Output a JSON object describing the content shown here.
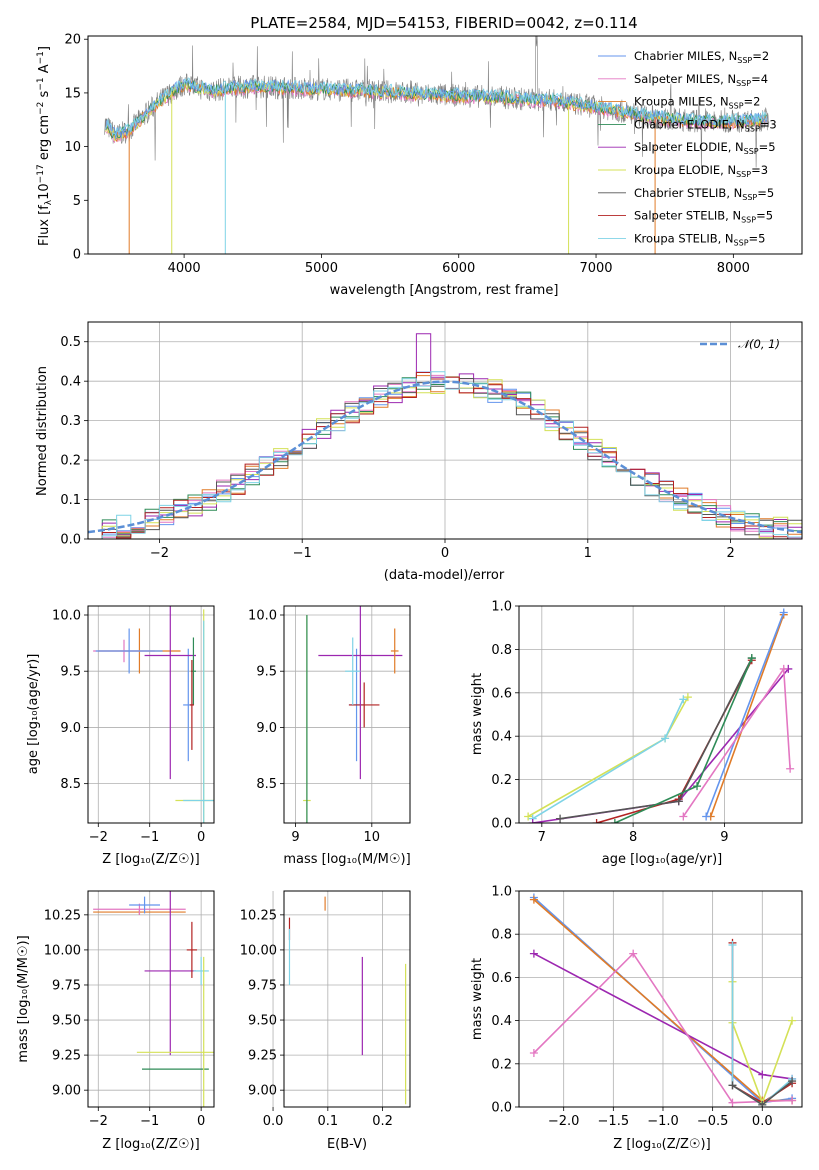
{
  "figure": {
    "title": "PLATE=2584, MJD=54153, FIBERID=0042, z=0.114"
  },
  "colors": {
    "series": [
      "#6495ed",
      "#e377c2",
      "#e07b28",
      "#2e8b57",
      "#9c27b0",
      "#d4e157",
      "#555555",
      "#b22222",
      "#7fd3e6"
    ],
    "data": "#808080",
    "normal": "#5b8fd6",
    "grid": "#b0b0b0"
  },
  "spectrum": {
    "xlabel": "wavelength [Angstrom, rest frame]",
    "ylabel": "Flux [f$_\\lambda$10$^{-17}$ erg cm$^{-2}$ s$^{-1}$ A$^{-1}$]",
    "ylabel_parts": [
      "Flux [f",
      "λ",
      "10",
      "−17",
      " erg cm",
      "−2",
      " s",
      "−1",
      " A",
      "−1",
      "]"
    ],
    "legend": [
      {
        "label": "Chabrier MILES, N",
        "sub": "SSP",
        "tail": "=2"
      },
      {
        "label": "Salpeter MILES, N",
        "sub": "SSP",
        "tail": "=4"
      },
      {
        "label": "Kroupa MILES, N",
        "sub": "SSP",
        "tail": "=2"
      },
      {
        "label": "Chabrier ELODIE, N",
        "sub": "SSP",
        "tail": "=3"
      },
      {
        "label": "Salpeter ELODIE, N",
        "sub": "SSP",
        "tail": "=5"
      },
      {
        "label": "Kroupa ELODIE, N",
        "sub": "SSP",
        "tail": "=3"
      },
      {
        "label": "Chabrier STELIB, N",
        "sub": "SSP",
        "tail": "=5"
      },
      {
        "label": "Salpeter STELIB, N",
        "sub": "SSP",
        "tail": "=5"
      },
      {
        "label": "Kroupa STELIB, N",
        "sub": "SSP",
        "tail": "=5"
      }
    ]
  },
  "residuals": {
    "xlabel": "(data-model)/error",
    "ylabel": "Normed distribution",
    "legend_label": "𝒩(0, 1)"
  },
  "age_z_panel": {
    "xlabel": "Z [log₁₀(Z/Z☉)]",
    "ylabel": "age  [log₁₀(age/yr)]"
  },
  "age_mass_panel": {
    "xlabel": "mass [log₁₀(M/M☉)]"
  },
  "weight_age_panel": {
    "xlabel": "age  [log₁₀(age/yr)]",
    "ylabel": "mass weight"
  },
  "mass_z_panel": {
    "xlabel": "Z [log₁₀(Z/Z☉)]",
    "ylabel": "mass [log₁₀(M/M☉)]"
  },
  "mass_ebv_panel": {
    "xlabel": "E(B-V)"
  },
  "weight_z_panel": {
    "xlabel": "Z [log₁₀(Z/Z☉)]",
    "ylabel": "mass weight"
  },
  "chart_data": [
    {
      "type": "line",
      "title": "PLATE=2584, MJD=54153, FIBERID=0042, z=0.114",
      "xlim": [
        3300,
        8500
      ],
      "ylim": [
        0,
        20.3
      ],
      "xticks": [
        4000,
        5000,
        6000,
        7000,
        8000
      ],
      "yticks": [
        0,
        5,
        10,
        15,
        20
      ],
      "grid": false,
      "legend_position": "top-right",
      "continuum": {
        "x": [
          3420,
          3500,
          3600,
          3700,
          3800,
          3900,
          4000,
          4100,
          4200,
          4300,
          4500,
          4700,
          4900,
          5100,
          5300,
          5500,
          5700,
          5900,
          6100,
          6300,
          6500,
          6700,
          6900,
          7100,
          7300,
          7500,
          7700,
          7900,
          8100,
          8250
        ],
        "y": [
          12.2,
          11.0,
          11.5,
          12.8,
          14.0,
          15.0,
          15.8,
          15.5,
          15.2,
          15.4,
          15.6,
          15.5,
          15.4,
          15.3,
          15.2,
          15.1,
          14.9,
          14.8,
          14.7,
          14.6,
          14.4,
          14.3,
          13.9,
          13.5,
          13.0,
          12.6,
          12.4,
          12.3,
          12.4,
          12.6
        ]
      },
      "dips": [
        {
          "series": "Kroupa MILES, N_SSP=2",
          "x": 3600,
          "y": 0
        },
        {
          "series": "Kroupa ELODIE, N_SSP=3",
          "x": 3910,
          "y": 0
        },
        {
          "series": "Kroupa STELIB, N_SSP=5",
          "x": 4300,
          "y": 0
        },
        {
          "series": "Kroupa ELODIE, N_SSP=3",
          "x": 6800,
          "y": 0
        },
        {
          "series": "Kroupa MILES, N_SSP=2",
          "x": 7430,
          "y": 0
        }
      ]
    },
    {
      "type": "bar",
      "xlim": [
        -2.5,
        2.5
      ],
      "ylim": [
        0,
        0.55
      ],
      "xticks": [
        -2,
        -1,
        0,
        1,
        2
      ],
      "yticks": [
        0.0,
        0.1,
        0.2,
        0.3,
        0.4,
        0.5
      ],
      "grid": true,
      "legend_position": "top-right",
      "bin_width": 0.1,
      "series": [
        {
          "name": "𝒩(0, 1)",
          "mean": 0,
          "std": 1
        }
      ]
    },
    {
      "type": "scatter",
      "xlabel": "Z [log₁₀(Z/Z☉)]",
      "ylabel": "age  [log₁₀(age/yr)]",
      "xlim": [
        -2.2,
        0.25
      ],
      "ylim": [
        8.15,
        10.08
      ],
      "xticks": [
        -2,
        -1,
        0
      ],
      "yticks": [
        8.5,
        9.0,
        9.5,
        10.0
      ],
      "points": [
        {
          "c": 0,
          "x": -0.25,
          "y": 9.2,
          "xe": 0.1,
          "ye": 0.5
        },
        {
          "c": 2,
          "x": -1.2,
          "y": 9.68,
          "xe": 0.8,
          "ye": 0.2
        },
        {
          "c": 1,
          "x": -1.5,
          "y": 9.68,
          "xe": 0.6,
          "ye": 0.1
        },
        {
          "c": 0,
          "x": -1.4,
          "y": 9.68,
          "xe": 0.65,
          "ye": 0.2
        },
        {
          "c": 4,
          "x": -0.6,
          "y": 9.64,
          "xe": 0.5,
          "ye": 1.1
        },
        {
          "c": 5,
          "x": 0.05,
          "y": 8.35,
          "xe": 0.55,
          "ye": 1.7
        },
        {
          "c": 3,
          "x": -0.15,
          "y": 9.5,
          "xe": 0.05,
          "ye": 0.3
        },
        {
          "c": 7,
          "x": -0.18,
          "y": 9.2,
          "xe": 0.04,
          "ye": 0.4
        },
        {
          "c": 8,
          "x": 0.05,
          "y": 8.35,
          "xe": 0.4,
          "ye": 1.6
        }
      ]
    },
    {
      "type": "scatter",
      "xlabel": "mass [log₁₀(M/M☉)]",
      "xlim": [
        8.85,
        10.5
      ],
      "ylim": [
        8.15,
        10.08
      ],
      "xticks": [
        9,
        10
      ],
      "yticks": [
        8.5,
        9.0,
        9.5,
        10.0
      ],
      "points": [
        {
          "c": 0,
          "x": 9.8,
          "y": 9.2,
          "xe": 0.1,
          "ye": 0.5
        },
        {
          "c": 7,
          "x": 9.9,
          "y": 9.2,
          "xe": 0.2,
          "ye": 0.2
        },
        {
          "c": 4,
          "x": 9.85,
          "y": 9.64,
          "xe": 0.55,
          "ye": 1.1
        },
        {
          "c": 5,
          "x": 9.15,
          "y": 8.35,
          "xe": 0.05,
          "ye": 1.65
        },
        {
          "c": 3,
          "x": 9.15,
          "y": 8.35,
          "xe": 0.0,
          "ye": 1.65
        },
        {
          "c": 2,
          "x": 10.3,
          "y": 9.68,
          "xe": 0.05,
          "ye": 0.2
        },
        {
          "c": 8,
          "x": 9.75,
          "y": 9.5,
          "xe": 0.1,
          "ye": 0.3
        }
      ]
    },
    {
      "type": "line",
      "xlabel": "age  [log₁₀(age/yr)]",
      "ylabel": "mass weight",
      "xlim": [
        6.75,
        9.85
      ],
      "ylim": [
        0,
        1.0
      ],
      "xticks": [
        7,
        8,
        9
      ],
      "yticks": [
        0.0,
        0.2,
        0.4,
        0.6,
        0.8,
        1.0
      ],
      "series": [
        {
          "c": 5,
          "x": [
            6.85,
            8.35,
            8.6
          ],
          "y": [
            0.03,
            0.39,
            0.58
          ]
        },
        {
          "c": 8,
          "x": [
            6.9,
            8.35,
            8.55
          ],
          "y": [
            0.02,
            0.39,
            0.57
          ]
        },
        {
          "c": 4,
          "x": [
            6.9,
            8.5,
            9.7
          ],
          "y": [
            0.0,
            0.1,
            0.71
          ]
        },
        {
          "c": 7,
          "x": [
            7.6,
            8.5,
            9.3
          ],
          "y": [
            0.0,
            0.11,
            0.75
          ]
        },
        {
          "c": 6,
          "x": [
            7.2,
            8.5,
            9.3
          ],
          "y": [
            0.02,
            0.1,
            0.76
          ]
        },
        {
          "c": 2,
          "x": [
            8.85,
            9.65
          ],
          "y": [
            0.03,
            0.96
          ]
        },
        {
          "c": 0,
          "x": [
            8.8,
            9.65
          ],
          "y": [
            0.03,
            0.97
          ]
        },
        {
          "c": 1,
          "x": [
            8.55,
            9.65,
            9.72
          ],
          "y": [
            0.03,
            0.71,
            0.25
          ]
        },
        {
          "c": 3,
          "x": [
            7.8,
            8.7,
            9.3
          ],
          "y": [
            0.0,
            0.17,
            0.76
          ]
        }
      ]
    },
    {
      "type": "scatter",
      "xlabel": "Z [log₁₀(Z/Z☉)]",
      "ylabel": "mass [log₁₀(M/M☉)]",
      "xlim": [
        -2.2,
        0.25
      ],
      "ylim": [
        8.88,
        10.42
      ],
      "xticks": [
        -2,
        -1,
        0
      ],
      "yticks": [
        9.0,
        9.25,
        9.5,
        9.75,
        10.0,
        10.25
      ],
      "points": [
        {
          "c": 2,
          "x": -1.2,
          "y": 10.27,
          "xe": 0.9,
          "ye": 0.02
        },
        {
          "c": 1,
          "x": -1.2,
          "y": 10.29,
          "xe": 0.9,
          "ye": 0.04
        },
        {
          "c": 0,
          "x": -1.1,
          "y": 10.32,
          "xe": 0.3,
          "ye": 0.06
        },
        {
          "c": 4,
          "x": -0.6,
          "y": 9.85,
          "xe": 0.5,
          "ye": 0.6
        },
        {
          "c": 7,
          "x": -0.18,
          "y": 10.0,
          "xe": 0.1,
          "ye": 0.2
        },
        {
          "c": 8,
          "x": 0.0,
          "y": 9.85,
          "xe": 0.15,
          "ye": 0.1
        },
        {
          "c": 5,
          "x": -0.5,
          "y": 9.27,
          "xe": 0.75,
          "ye": 0.0
        },
        {
          "c": 3,
          "x": -0.5,
          "y": 9.15,
          "xe": 0.65,
          "ye": 0.0
        },
        {
          "c": 5,
          "x": 0.05,
          "y": 9.4,
          "xe": 0.0,
          "ye": 0.55
        }
      ]
    },
    {
      "type": "scatter",
      "xlabel": "E(B-V)",
      "xlim": [
        0.02,
        0.25
      ],
      "ylim": [
        8.88,
        10.42
      ],
      "xticks": [
        0.0,
        0.1,
        0.2
      ],
      "yticks": [
        9.0,
        9.25,
        9.5,
        9.75,
        10.0,
        10.25
      ],
      "points": [
        {
          "c": 2,
          "x": 0.095,
          "y": 10.33,
          "xe": 0.0,
          "ye": 0.05
        },
        {
          "c": 7,
          "x": 0.03,
          "y": 10.15,
          "xe": 0.0,
          "ye": 0.08
        },
        {
          "c": 8,
          "x": 0.03,
          "y": 9.95,
          "xe": 0.0,
          "ye": 0.2
        },
        {
          "c": 4,
          "x": 0.163,
          "y": 9.6,
          "xe": 0.0,
          "ye": 0.35
        },
        {
          "c": 5,
          "x": 0.242,
          "y": 9.4,
          "xe": 0.0,
          "ye": 0.5
        }
      ]
    },
    {
      "type": "line",
      "xlabel": "Z [log₁₀(Z/Z☉)]",
      "ylabel": "mass weight",
      "xlim": [
        -2.45,
        0.4
      ],
      "ylim": [
        0,
        1.0
      ],
      "xticks": [
        -2.0,
        -1.5,
        -1.0,
        -0.5,
        0.0
      ],
      "yticks": [
        0.0,
        0.2,
        0.4,
        0.6,
        0.8,
        1.0
      ],
      "series": [
        {
          "c": 0,
          "x": [
            -2.3,
            0.0,
            0.3
          ],
          "y": [
            0.97,
            0.02,
            0.04
          ]
        },
        {
          "c": 2,
          "x": [
            -2.3,
            0.0,
            0.3
          ],
          "y": [
            0.96,
            0.03,
            0.03
          ]
        },
        {
          "c": 4,
          "x": [
            -2.3,
            0.0,
            0.3
          ],
          "y": [
            0.71,
            0.15,
            0.13
          ]
        },
        {
          "c": 1,
          "x": [
            -2.3,
            -1.3,
            -0.3,
            0.3
          ],
          "y": [
            0.25,
            0.71,
            0.02,
            0.03
          ]
        },
        {
          "c": 7,
          "x": [
            -0.3,
            -0.3,
            0.0,
            0.3
          ],
          "y": [
            0.76,
            0.1,
            0.02,
            0.11
          ]
        },
        {
          "c": 5,
          "x": [
            -0.3,
            -0.3,
            0.0,
            0.3
          ],
          "y": [
            0.58,
            0.39,
            0.02,
            0.4
          ]
        },
        {
          "c": 8,
          "x": [
            -0.3,
            -0.3,
            0.0,
            0.3
          ],
          "y": [
            0.75,
            0.1,
            0.01,
            0.13
          ]
        },
        {
          "c": 6,
          "x": [
            -0.3,
            0.0,
            0.3
          ],
          "y": [
            0.1,
            0.01,
            0.12
          ]
        }
      ]
    }
  ]
}
